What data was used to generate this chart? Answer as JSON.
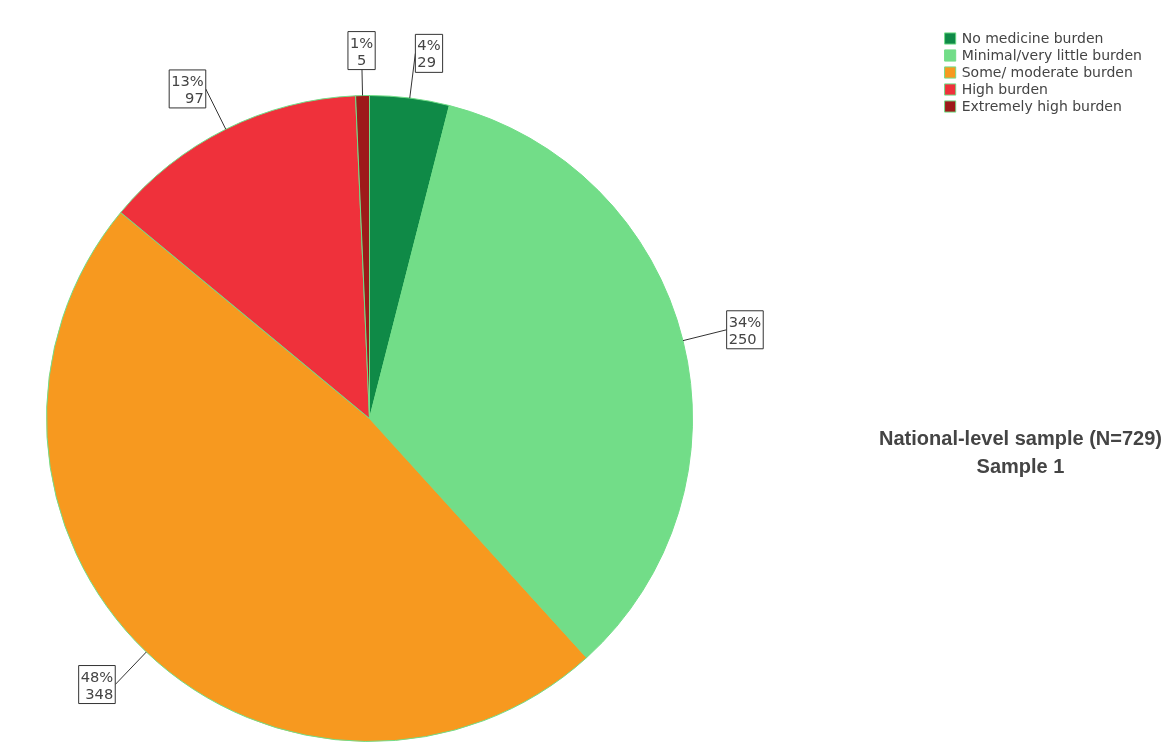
{
  "chart_data": {
    "type": "pie",
    "title": "National-level sample (N=729)",
    "subtitle": "Sample 1",
    "categories": [
      "No medicine burden",
      "Minimal/very little burden",
      "Some/ moderate burden",
      "High burden",
      "Extremely high burden"
    ],
    "values": [
      29,
      250,
      348,
      97,
      5
    ],
    "colors": [
      "#0f8a47",
      "#72dd88",
      "#f7991f",
      "#ef313b",
      "#9e1a1a"
    ],
    "value_labels": [
      "4%\n29",
      "34%\n250",
      "48%\n348",
      "13%\n97",
      "1%\n5"
    ],
    "legend": "top right"
  }
}
